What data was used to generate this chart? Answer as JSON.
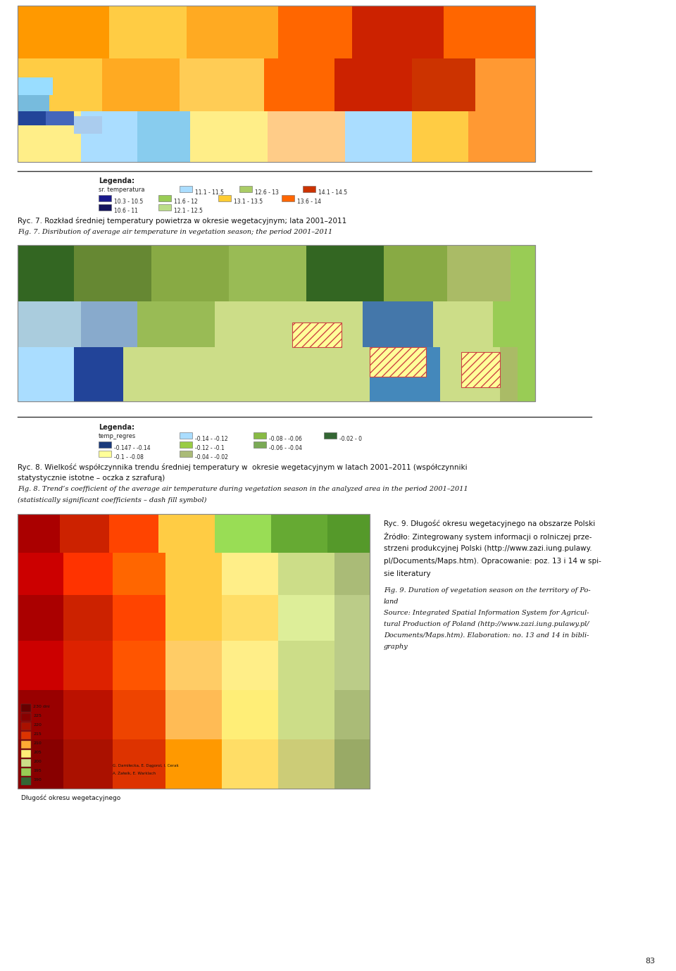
{
  "page_bg": "#ffffff",
  "fig_width": 9.6,
  "fig_height": 13.79,
  "dpi": 100,
  "caption1_polish": "Ryc. 7. Rozkład średniej temperatury powietrza w okresie wegetacyjnym; lata 2001–2011",
  "caption1_english": "Fig. 7. Disribution of average air temperature in vegetation season; the period 2001–2011",
  "caption2_line1": "Ryc. 8. Wielkość współczynnika trendu średniej temperatury w  okresie wegetacyjnym w latach 2001–2011 (współczynniki",
  "caption2_line2": "statystycznie istotne – oczka z szrafurą)",
  "caption2_line3": "Fig. 8. Trend’s coefficient of the average air temperature during vegetation season in the analyzed area in the period 2001–2011",
  "caption2_line4": "(statistically significant coefficients – dash fill symbol)",
  "page_number": "83"
}
